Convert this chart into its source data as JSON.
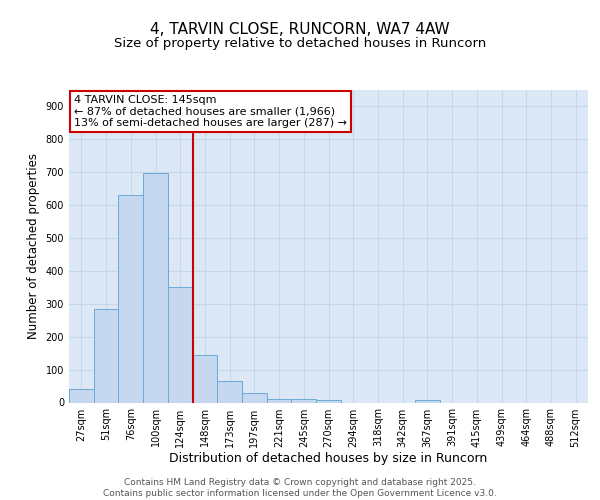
{
  "title": "4, TARVIN CLOSE, RUNCORN, WA7 4AW",
  "subtitle": "Size of property relative to detached houses in Runcorn",
  "xlabel": "Distribution of detached houses by size in Runcorn",
  "ylabel": "Number of detached properties",
  "categories": [
    "27sqm",
    "51sqm",
    "76sqm",
    "100sqm",
    "124sqm",
    "148sqm",
    "173sqm",
    "197sqm",
    "221sqm",
    "245sqm",
    "270sqm",
    "294sqm",
    "318sqm",
    "342sqm",
    "367sqm",
    "391sqm",
    "415sqm",
    "439sqm",
    "464sqm",
    "488sqm",
    "512sqm"
  ],
  "values": [
    42,
    283,
    630,
    697,
    352,
    145,
    65,
    30,
    12,
    11,
    9,
    0,
    0,
    0,
    8,
    0,
    0,
    0,
    0,
    0,
    0
  ],
  "bar_color": "#c5d8f0",
  "bar_edge_color": "#6aaad4",
  "vline_color": "#cc0000",
  "annotation_text": "4 TARVIN CLOSE: 145sqm\n← 87% of detached houses are smaller (1,966)\n13% of semi-detached houses are larger (287) →",
  "annotation_box_color": "white",
  "annotation_box_edge_color": "#cc0000",
  "ylim": [
    0,
    950
  ],
  "yticks": [
    0,
    100,
    200,
    300,
    400,
    500,
    600,
    700,
    800,
    900
  ],
  "grid_color": "#c8d8ec",
  "background_color": "#dce8f5",
  "footer_text": "Contains HM Land Registry data © Crown copyright and database right 2025.\nContains public sector information licensed under the Open Government Licence v3.0.",
  "title_fontsize": 11,
  "subtitle_fontsize": 9.5,
  "tick_fontsize": 7,
  "ylabel_fontsize": 8.5,
  "xlabel_fontsize": 9,
  "footer_fontsize": 6.5,
  "annot_fontsize": 8
}
